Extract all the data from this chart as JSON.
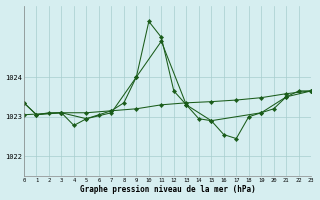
{
  "title": "Graphe pression niveau de la mer (hPa)",
  "bg_color": "#d6eef0",
  "line_color": "#1a5c1a",
  "ylim": [
    1021.5,
    1025.8
  ],
  "xlim": [
    0,
    23
  ],
  "yticks": [
    1022,
    1023,
    1024
  ],
  "xticks": [
    0,
    1,
    2,
    3,
    4,
    5,
    6,
    7,
    8,
    9,
    10,
    11,
    12,
    13,
    14,
    15,
    16,
    17,
    18,
    19,
    20,
    21,
    22,
    23
  ],
  "line1_x": [
    0,
    1,
    2,
    3,
    4,
    5,
    6,
    7,
    8,
    9,
    10,
    11,
    12,
    13,
    14,
    15,
    16,
    17,
    18,
    19,
    20,
    21,
    22,
    23
  ],
  "line1_y": [
    1023.35,
    1023.05,
    1023.1,
    1023.1,
    1022.78,
    1022.95,
    1023.05,
    1023.15,
    1023.35,
    1024.0,
    1025.4,
    1025.0,
    1023.65,
    1023.3,
    1022.95,
    1022.9,
    1022.55,
    1022.45,
    1023.0,
    1023.1,
    1023.2,
    1023.5,
    1023.65,
    1023.65
  ],
  "line2_x": [
    0,
    3,
    5,
    7,
    9,
    11,
    13,
    15,
    17,
    19,
    21,
    23
  ],
  "line2_y": [
    1023.05,
    1023.1,
    1023.1,
    1023.15,
    1023.2,
    1023.3,
    1023.35,
    1023.38,
    1023.42,
    1023.48,
    1023.58,
    1023.65
  ],
  "line3_x": [
    0,
    1,
    3
  ],
  "line3_y": [
    1023.35,
    1023.05,
    1023.1
  ],
  "line4_x": [
    3,
    5,
    7,
    9,
    11,
    13,
    15,
    19,
    21,
    23
  ],
  "line4_y": [
    1023.1,
    1022.95,
    1023.1,
    1024.0,
    1024.9,
    1023.3,
    1022.9,
    1023.1,
    1023.5,
    1023.65
  ]
}
